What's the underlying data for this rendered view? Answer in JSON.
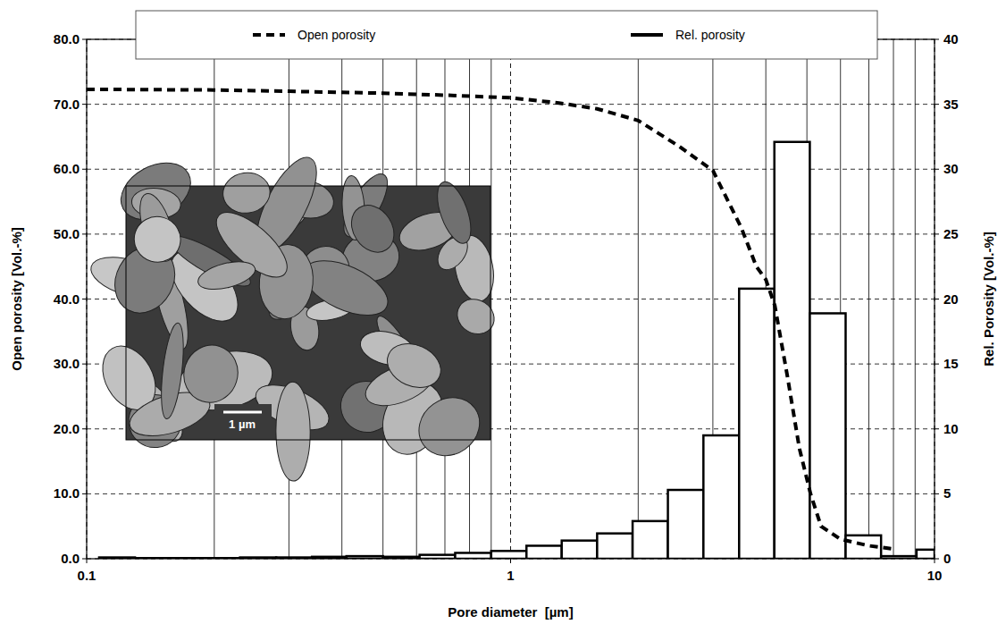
{
  "chart_data": {
    "type": "combo",
    "log": "x",
    "grid": true,
    "legend": "top",
    "x_label": "Pore diameter  [µm]",
    "y_label": "Open porosity [Vol.-%]",
    "y2_label": "Rel. Porosity [Vol.-%]",
    "annotations": [
      "1 µm"
    ],
    "xlim": [
      0.1,
      10
    ],
    "xticks": [
      0.1,
      1,
      10
    ],
    "ylim": [
      0,
      80
    ],
    "yticks": [
      {
        "value": 0,
        "label": "0.0"
      },
      {
        "value": 10,
        "label": "10.0"
      },
      {
        "value": 20,
        "label": "20.0"
      },
      {
        "value": 30,
        "label": "30.0"
      },
      {
        "value": 40,
        "label": "40.0"
      },
      {
        "value": 50,
        "label": "50.0"
      },
      {
        "value": 60,
        "label": "60.0"
      },
      {
        "value": 70,
        "label": "70.0"
      },
      {
        "value": 80,
        "label": "80.0"
      }
    ],
    "y2lim": [
      0,
      40
    ],
    "y2ticks": [
      0,
      5,
      10,
      15,
      20,
      25,
      30,
      35,
      40
    ],
    "series": [
      {
        "name": "Open porosity",
        "type": "line",
        "line_style": "dashed",
        "color": "#000000",
        "x": [
          0.1,
          0.2,
          0.3,
          0.5,
          0.7,
          1,
          1.3,
          1.6,
          2,
          2.5,
          3,
          3.5,
          3.8,
          4,
          4.2,
          4.5,
          4.8,
          5.1,
          5.4,
          6,
          7,
          8
        ],
        "values": [
          72.3,
          72.2,
          72.0,
          71.7,
          71.4,
          71.0,
          70.2,
          69.3,
          67.5,
          63.5,
          59.8,
          51,
          45,
          43,
          39,
          28,
          17,
          10,
          5,
          3,
          2,
          1.5
        ]
      },
      {
        "name": "Rel. porosity",
        "type": "histogram",
        "axis": "y2",
        "color": "#000000",
        "bins": [
          0.107,
          0.13,
          0.157,
          0.19,
          0.23,
          0.28,
          0.34,
          0.41,
          0.5,
          0.61,
          0.74,
          0.9,
          1.09,
          1.32,
          1.6,
          1.94,
          2.35,
          2.85,
          3.46,
          4.19,
          5.08,
          6.17,
          7.48,
          9.07,
          10
        ],
        "values": [
          0.1,
          0.05,
          0.05,
          0.05,
          0.1,
          0.1,
          0.15,
          0.2,
          0.15,
          0.3,
          0.45,
          0.6,
          1.0,
          1.4,
          1.95,
          2.9,
          5.3,
          9.5,
          20.8,
          32.1,
          18.9,
          1.8,
          0.2,
          0.7
        ]
      }
    ]
  }
}
